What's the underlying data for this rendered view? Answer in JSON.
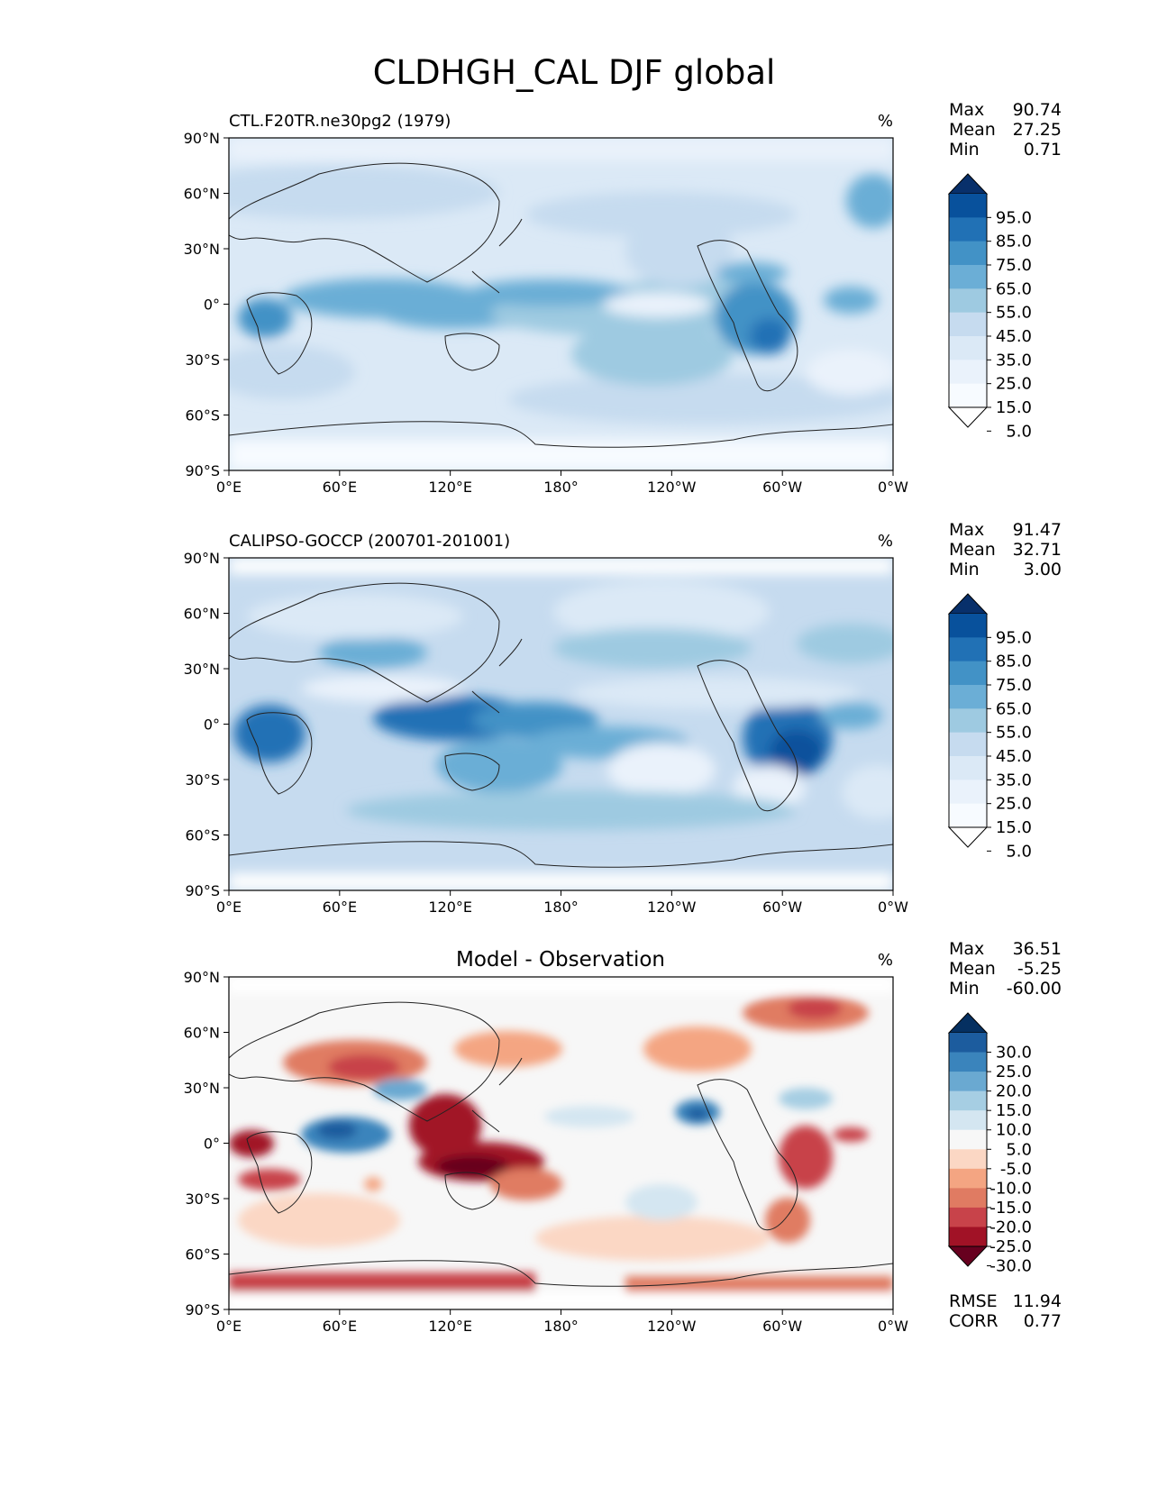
{
  "figure": {
    "title": "CLDHGH_CAL DJF global"
  },
  "chart_data": [
    {
      "type": "heatmap",
      "panel_title": "CTL.F20TR.ne30pg2 (1979)",
      "units": "%",
      "stats": {
        "max_label": "Max",
        "max": "90.74",
        "mean_label": "Mean",
        "mean": "27.25",
        "min_label": "Min",
        "min": "0.71"
      },
      "xticks": [
        "0°E",
        "60°E",
        "120°E",
        "180°",
        "120°W",
        "60°W",
        "0°W"
      ],
      "yticks": [
        "90°N",
        "60°N",
        "30°N",
        "0°",
        "30°S",
        "60°S",
        "90°S"
      ],
      "xlim": [
        0,
        360
      ],
      "ylim": [
        -90,
        90
      ],
      "colorbar": {
        "labels": [
          "95.0",
          "85.0",
          "75.0",
          "65.0",
          "55.0",
          "45.0",
          "35.0",
          "25.0",
          "15.0",
          "5.0"
        ],
        "colors": [
          "#08306b",
          "#08519c",
          "#2171b5",
          "#4292c6",
          "#6baed6",
          "#9ecae1",
          "#c6dbef",
          "#dbe9f6",
          "#eaf2fb",
          "#f7fbff",
          "#ffffff"
        ]
      }
    },
    {
      "type": "heatmap",
      "panel_title": "CALIPSO-GOCCP (200701-201001)",
      "units": "%",
      "stats": {
        "max_label": "Max",
        "max": "91.47",
        "mean_label": "Mean",
        "mean": "32.71",
        "min_label": "Min",
        "min": "3.00"
      },
      "xticks": [
        "0°E",
        "60°E",
        "120°E",
        "180°",
        "120°W",
        "60°W",
        "0°W"
      ],
      "yticks": [
        "90°N",
        "60°N",
        "30°N",
        "0°",
        "30°S",
        "60°S",
        "90°S"
      ],
      "xlim": [
        0,
        360
      ],
      "ylim": [
        -90,
        90
      ],
      "colorbar": {
        "labels": [
          "95.0",
          "85.0",
          "75.0",
          "65.0",
          "55.0",
          "45.0",
          "35.0",
          "25.0",
          "15.0",
          "5.0"
        ],
        "colors": [
          "#08306b",
          "#08519c",
          "#2171b5",
          "#4292c6",
          "#6baed6",
          "#9ecae1",
          "#c6dbef",
          "#dbe9f6",
          "#eaf2fb",
          "#f7fbff",
          "#ffffff"
        ]
      }
    },
    {
      "type": "heatmap",
      "panel_title": "Model - Observation",
      "units": "%",
      "stats": {
        "max_label": "Max",
        "max": "36.51",
        "mean_label": "Mean",
        "mean": "-5.25",
        "min_label": "Min",
        "min": "-60.00"
      },
      "extra_stats": {
        "rmse_label": "RMSE",
        "rmse": "11.94",
        "corr_label": "CORR",
        "corr": "0.77"
      },
      "xticks": [
        "0°E",
        "60°E",
        "120°E",
        "180°",
        "120°W",
        "60°W",
        "0°W"
      ],
      "yticks": [
        "90°N",
        "60°N",
        "30°N",
        "0°",
        "30°S",
        "60°S",
        "90°S"
      ],
      "xlim": [
        0,
        360
      ],
      "ylim": [
        -90,
        90
      ],
      "colorbar": {
        "labels": [
          "30.0",
          "25.0",
          "20.0",
          "15.0",
          "10.0",
          "5.0",
          "-5.0",
          "-10.0",
          "-15.0",
          "-20.0",
          "-25.0",
          "-30.0"
        ],
        "colors": [
          "#053061",
          "#1c5c9e",
          "#3a84bc",
          "#6aa9d1",
          "#a6cee3",
          "#d4e6f1",
          "#f7f7f7",
          "#fbd7c4",
          "#f4a582",
          "#e07b62",
          "#c8434a",
          "#a11226",
          "#67001f"
        ]
      }
    }
  ]
}
